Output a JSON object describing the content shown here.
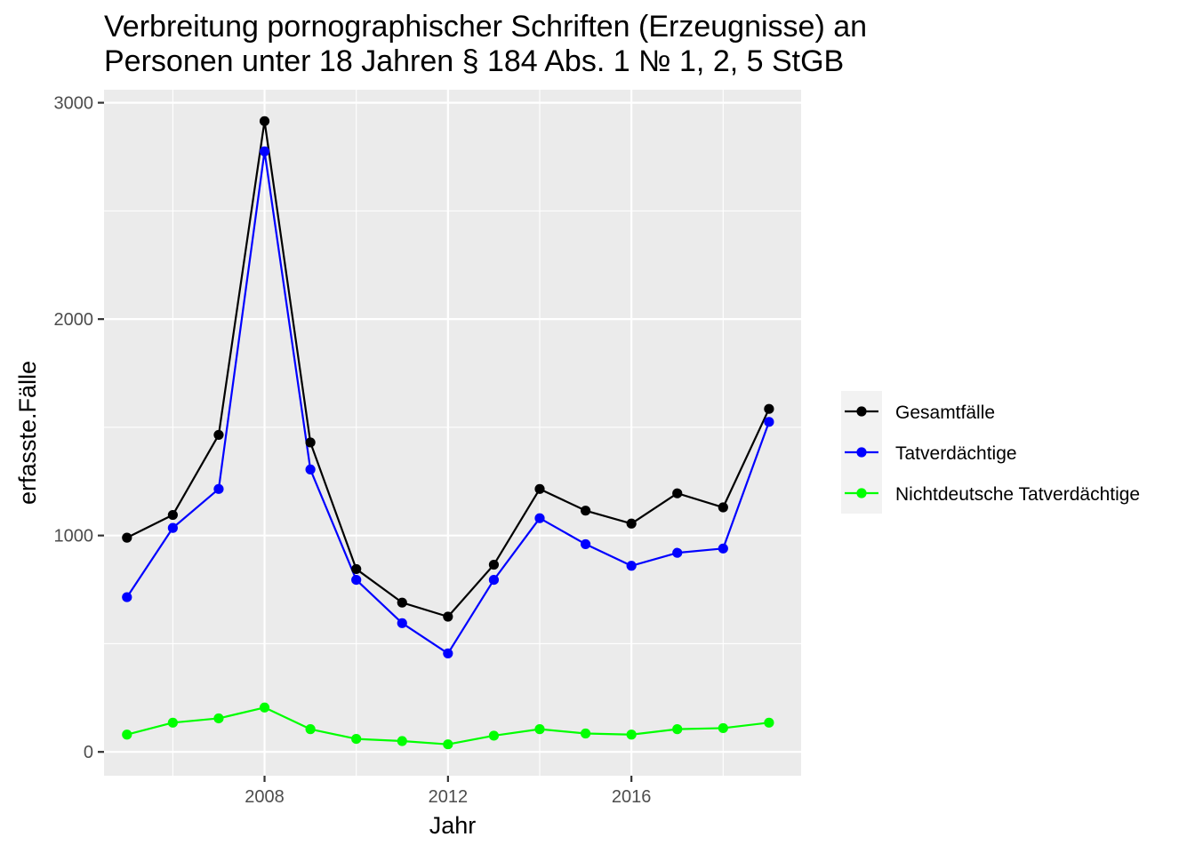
{
  "chart_data": {
    "type": "line",
    "title_lines": [
      "Verbreitung pornographischer Schriften (Erzeugnisse) an",
      "Personen unter 18 Jahren § 184 Abs. 1 № 1, 2, 5 StGB"
    ],
    "xlabel": "Jahr",
    "ylabel": "erfasste.Fälle",
    "x": [
      2005,
      2006,
      2007,
      2008,
      2009,
      2010,
      2011,
      2012,
      2013,
      2014,
      2015,
      2016,
      2017,
      2018,
      2019
    ],
    "xlim": [
      2004.5,
      2019.7
    ],
    "ylim": [
      -110,
      3060
    ],
    "x_ticks": [
      2008,
      2012,
      2016
    ],
    "x_tick_labels": [
      "2008",
      "2012",
      "2016"
    ],
    "y_ticks": [
      0,
      1000,
      2000,
      3000
    ],
    "y_tick_labels": [
      "0",
      "1000",
      "2000",
      "3000"
    ],
    "grid": true,
    "legend_position": "right",
    "series": [
      {
        "name": "Gesamtfälle",
        "color": "#000000",
        "values": [
          990,
          1095,
          1465,
          2915,
          1430,
          845,
          690,
          625,
          865,
          1215,
          1115,
          1055,
          1195,
          1130,
          1585
        ]
      },
      {
        "name": "Tatverdächtige",
        "color": "#0000ff",
        "values": [
          715,
          1035,
          1215,
          2775,
          1305,
          795,
          595,
          455,
          795,
          1080,
          960,
          860,
          920,
          940,
          1525
        ]
      },
      {
        "name": "Nichtdeutsche Tatverdächtige",
        "color": "#00ff00",
        "values": [
          80,
          135,
          155,
          205,
          105,
          60,
          50,
          35,
          75,
          105,
          85,
          80,
          105,
          110,
          135
        ]
      }
    ]
  }
}
